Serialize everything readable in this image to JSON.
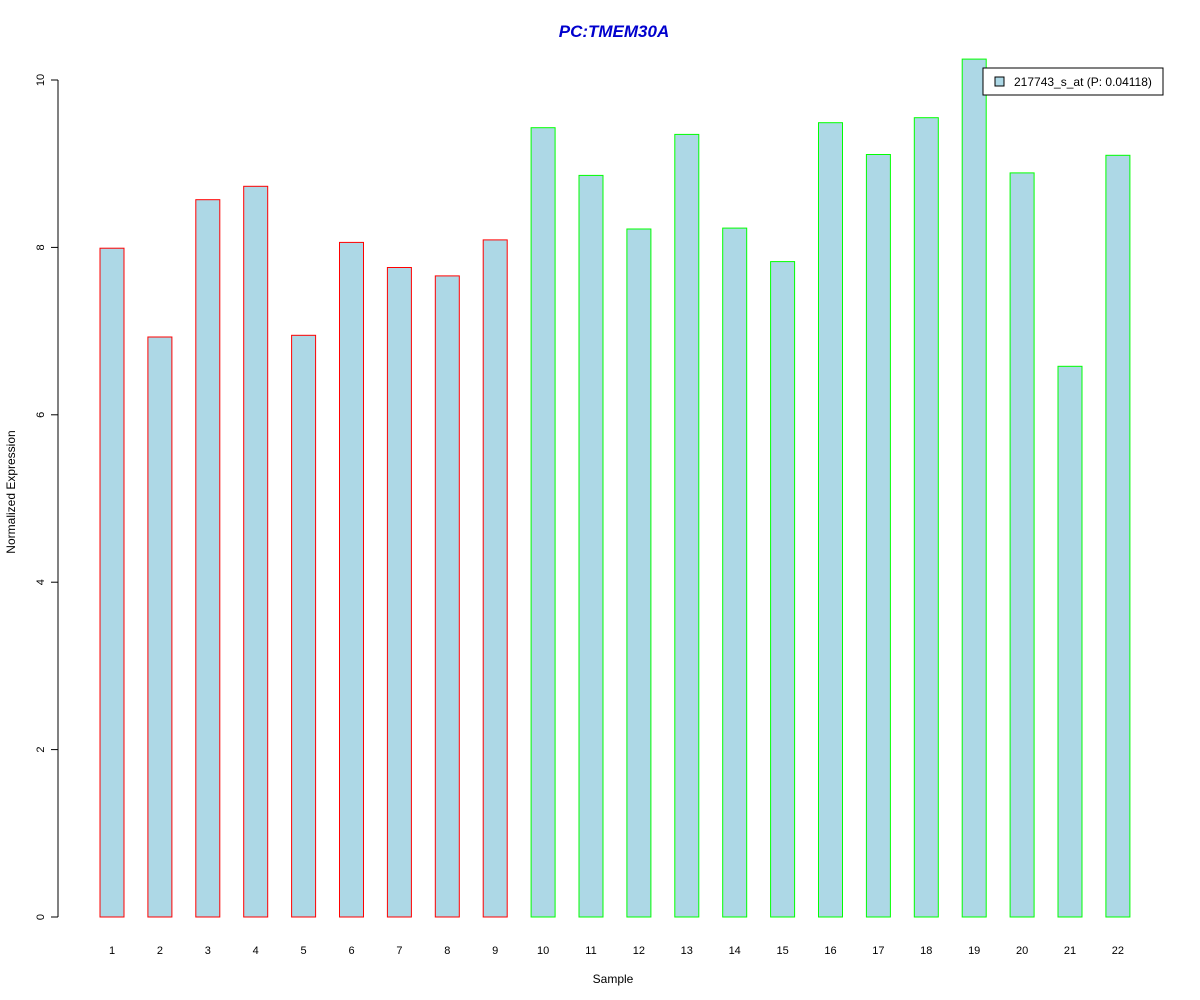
{
  "chart_data": {
    "type": "bar",
    "title": "PC:TMEM30A",
    "xlabel": "Sample",
    "ylabel": "Normalized Expression",
    "categories": [
      "1",
      "2",
      "3",
      "4",
      "5",
      "6",
      "7",
      "8",
      "9",
      "10",
      "11",
      "12",
      "13",
      "14",
      "15",
      "16",
      "17",
      "18",
      "19",
      "20",
      "21",
      "22"
    ],
    "series": [
      {
        "name": "217743_s_at (P: 0.04118)",
        "values": [
          7.99,
          6.93,
          8.57,
          8.73,
          6.95,
          8.06,
          7.76,
          7.66,
          8.09,
          9.43,
          8.86,
          8.22,
          9.35,
          8.23,
          7.83,
          9.49,
          9.11,
          9.55,
          10.25,
          8.89,
          6.58,
          9.1
        ]
      }
    ],
    "ylim": [
      0,
      10.3
    ],
    "yticks": [
      "0",
      "2",
      "4",
      "6",
      "8",
      "10"
    ],
    "grid": false,
    "legend_position": "top-right",
    "colors": {
      "bar_fill": "#add8e6",
      "group1_border": "#ff0000",
      "group2_border": "#00ff00",
      "title": "#0000cd",
      "axis": "#000000"
    },
    "border_groups": [
      {
        "samples": [
          "1",
          "2",
          "3",
          "4",
          "5",
          "6",
          "7",
          "8",
          "9"
        ],
        "color": "#ff0000"
      },
      {
        "samples": [
          "10",
          "11",
          "12",
          "13",
          "14",
          "15",
          "16",
          "17",
          "18",
          "19",
          "20",
          "21",
          "22"
        ],
        "color": "#00ff00"
      }
    ]
  }
}
